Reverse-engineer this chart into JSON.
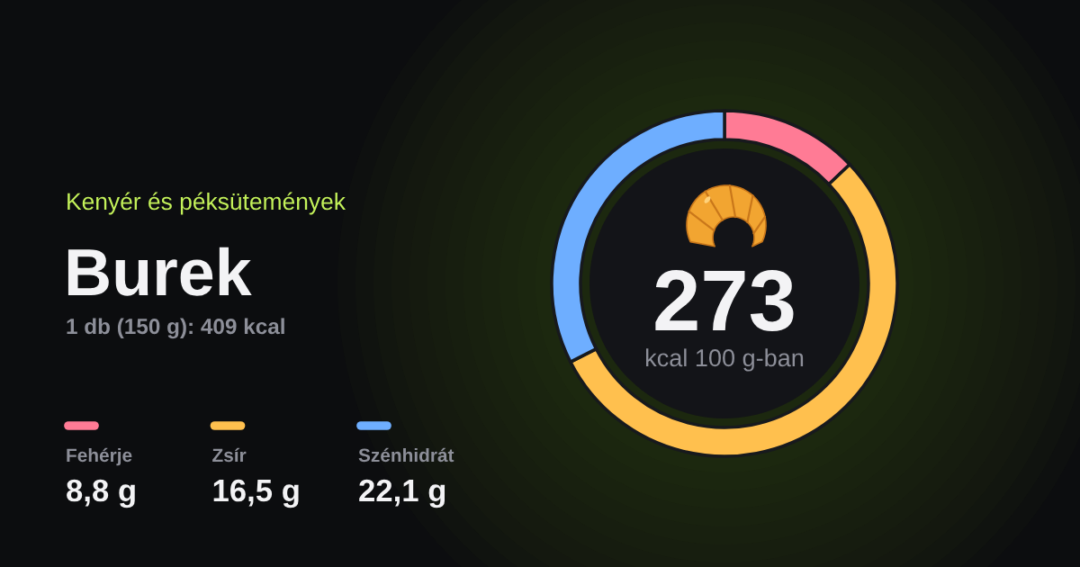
{
  "chart_data": {
    "type": "donut",
    "title": "Burek",
    "subtitle": "1 db (150 g): 409 kcal",
    "categories": [
      "Fehérje",
      "Zsír",
      "Szénhidrát"
    ],
    "values": [
      12.9,
      54.6,
      32.5
    ],
    "colors": [
      "#ff7b95",
      "#ffc04e",
      "#6eaeff"
    ],
    "legend": "left",
    "annotations": [
      "Kenyér és péksütemények",
      "273",
      "kcal 100 g-ban",
      "8,8 g",
      "16,5 g",
      "22,1 g"
    ]
  }
}
